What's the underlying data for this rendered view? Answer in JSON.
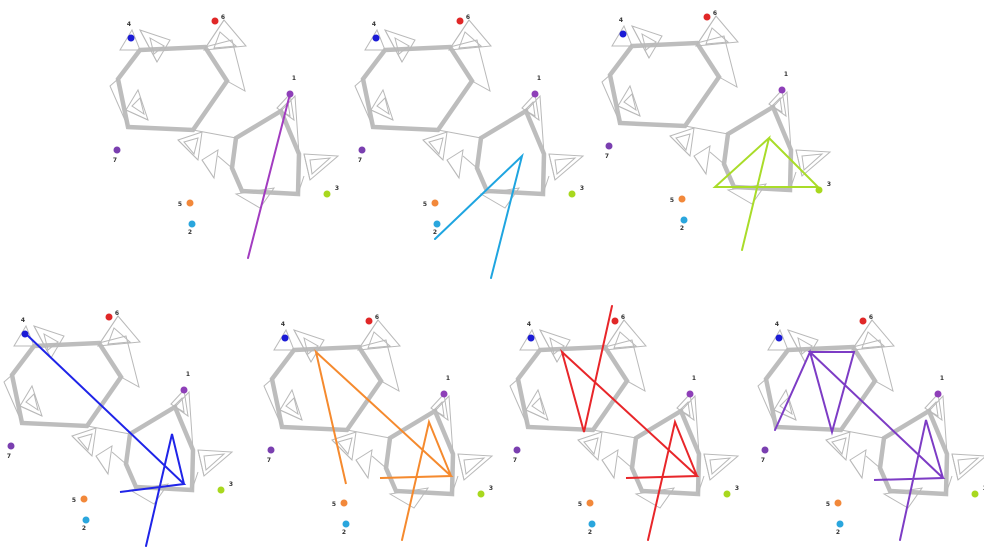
{
  "nodes": [
    {
      "id": "1",
      "label": "1",
      "color": "#8e3fb8"
    },
    {
      "id": "2",
      "label": "2",
      "color": "#2aa6dd"
    },
    {
      "id": "3",
      "label": "3",
      "color": "#a8d81e"
    },
    {
      "id": "4",
      "label": "4",
      "color": "#1b1bd6"
    },
    {
      "id": "5",
      "label": "5",
      "color": "#f2883a"
    },
    {
      "id": "6",
      "label": "6",
      "color": "#e02727"
    },
    {
      "id": "7",
      "label": "7",
      "color": "#7a3fb0"
    }
  ],
  "panels": [
    {
      "name": "panel-1",
      "highlight_node": "1",
      "color": "#a23cc0"
    },
    {
      "name": "panel-2",
      "highlight_node": "2",
      "color": "#1fa5e0"
    },
    {
      "name": "panel-3",
      "highlight_node": "3",
      "color": "#a9dc29"
    },
    {
      "name": "panel-4",
      "highlight_node": "4",
      "color": "#1f24e8"
    },
    {
      "name": "panel-5",
      "highlight_node": "5",
      "color": "#f58a2e"
    },
    {
      "name": "panel-6",
      "highlight_node": "6",
      "color": "#e8262a"
    },
    {
      "name": "panel-7",
      "highlight_node": "7",
      "color": "#7d3cc5"
    }
  ]
}
